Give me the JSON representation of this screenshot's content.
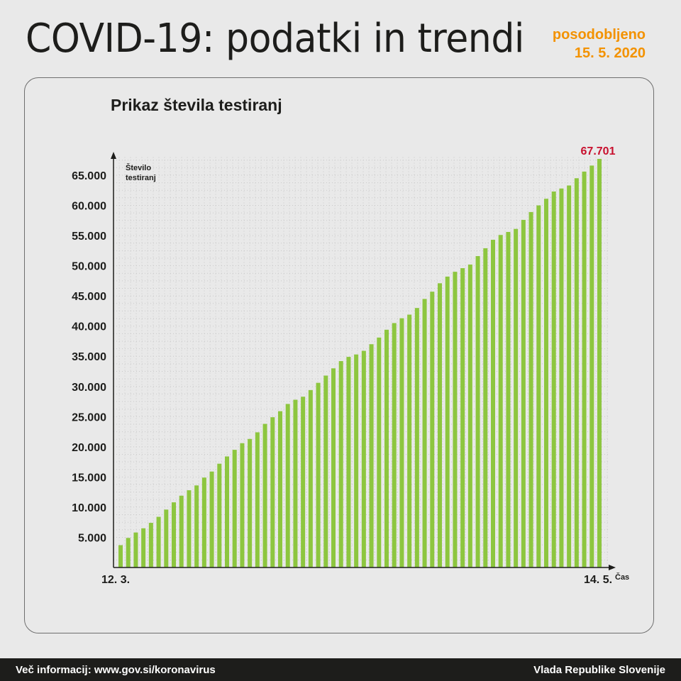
{
  "header": {
    "title": "COVID-19: podatki in trendi",
    "updated_label": "posodobljeno",
    "updated_date": "15. 5. 2020"
  },
  "chart_data": {
    "type": "bar",
    "title": "Prikaz števila testiranj",
    "ylabel": "Število testiranj",
    "ylabel_lines": [
      "Število",
      "testiranj"
    ],
    "xlabel": "Čas",
    "x_start_label": "12. 3.",
    "x_end_label": "14. 5.",
    "yticks": [
      5000,
      10000,
      15000,
      20000,
      25000,
      30000,
      35000,
      40000,
      45000,
      50000,
      55000,
      60000,
      65000
    ],
    "ytick_labels": [
      "5.000",
      "10.000",
      "15.000",
      "20.000",
      "25.000",
      "30.000",
      "35.000",
      "40.000",
      "45.000",
      "50.000",
      "55.000",
      "60.000",
      "65.000"
    ],
    "ylim": [
      0,
      68000
    ],
    "last_value_label": "67.701",
    "bar_color": "#8dc63f",
    "values": [
      3700,
      4900,
      5800,
      6500,
      7400,
      8400,
      9600,
      10800,
      11900,
      12800,
      13600,
      14900,
      15900,
      17200,
      18400,
      19500,
      20600,
      21300,
      22400,
      23800,
      24900,
      25900,
      27100,
      27800,
      28300,
      29400,
      30600,
      31800,
      33000,
      34200,
      34900,
      35300,
      35900,
      37000,
      38100,
      39400,
      40500,
      41300,
      41900,
      43000,
      44500,
      45700,
      47100,
      48200,
      49000,
      49600,
      50200,
      51600,
      52900,
      54300,
      55100,
      55600,
      56100,
      57600,
      58900,
      60000,
      61100,
      62300,
      62800,
      63300,
      64500,
      65600,
      66600,
      67701
    ]
  },
  "footer": {
    "left_text": "Več informacij: www.gov.si/koronavirus",
    "right_text": "Vlada Republike Slovenije"
  }
}
